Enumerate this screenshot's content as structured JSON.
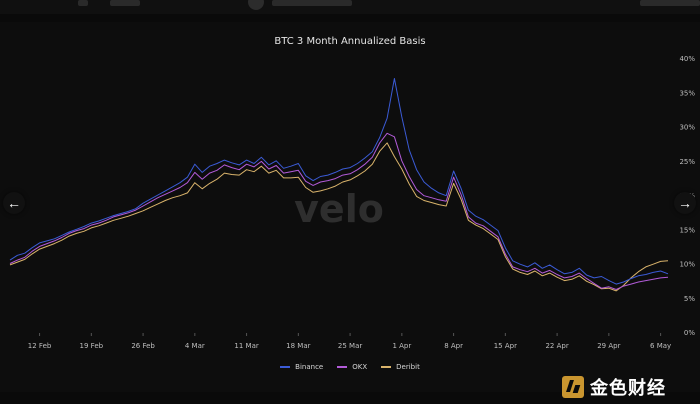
{
  "chart_data": {
    "type": "line",
    "title": "BTC 3 Month Annualized Basis",
    "xlabel": "",
    "ylabel": "",
    "x": [
      "2024-02-08",
      "2024-02-09",
      "2024-02-10",
      "2024-02-11",
      "2024-02-12",
      "2024-02-13",
      "2024-02-14",
      "2024-02-15",
      "2024-02-16",
      "2024-02-17",
      "2024-02-18",
      "2024-02-19",
      "2024-02-20",
      "2024-02-21",
      "2024-02-22",
      "2024-02-23",
      "2024-02-24",
      "2024-02-25",
      "2024-02-26",
      "2024-02-27",
      "2024-02-28",
      "2024-02-29",
      "2024-03-01",
      "2024-03-02",
      "2024-03-03",
      "2024-03-04",
      "2024-03-05",
      "2024-03-06",
      "2024-03-07",
      "2024-03-08",
      "2024-03-09",
      "2024-03-10",
      "2024-03-11",
      "2024-03-12",
      "2024-03-13",
      "2024-03-14",
      "2024-03-15",
      "2024-03-16",
      "2024-03-17",
      "2024-03-18",
      "2024-03-19",
      "2024-03-20",
      "2024-03-21",
      "2024-03-22",
      "2024-03-23",
      "2024-03-24",
      "2024-03-25",
      "2024-03-26",
      "2024-03-27",
      "2024-03-28",
      "2024-03-29",
      "2024-03-30",
      "2024-03-31",
      "2024-04-01",
      "2024-04-02",
      "2024-04-03",
      "2024-04-04",
      "2024-04-05",
      "2024-04-06",
      "2024-04-07",
      "2024-04-08",
      "2024-04-09",
      "2024-04-10",
      "2024-04-11",
      "2024-04-12",
      "2024-04-13",
      "2024-04-14",
      "2024-04-15",
      "2024-04-16",
      "2024-04-17",
      "2024-04-18",
      "2024-04-19",
      "2024-04-20",
      "2024-04-21",
      "2024-04-22",
      "2024-04-23",
      "2024-04-24",
      "2024-04-25",
      "2024-04-26",
      "2024-04-27",
      "2024-04-28",
      "2024-04-29",
      "2024-04-30",
      "2024-05-01",
      "2024-05-02",
      "2024-05-03",
      "2024-05-04",
      "2024-05-05",
      "2024-05-06",
      "2024-05-07"
    ],
    "series": [
      {
        "name": "Binance",
        "color": "#3b5bd6",
        "values": [
          10.5,
          11.2,
          11.5,
          12.3,
          13.0,
          13.3,
          13.6,
          14.1,
          14.6,
          15.0,
          15.4,
          15.9,
          16.2,
          16.6,
          17.0,
          17.3,
          17.6,
          18.0,
          18.8,
          19.4,
          20.0,
          20.6,
          21.2,
          21.8,
          22.6,
          24.5,
          23.3,
          24.2,
          24.6,
          25.1,
          24.7,
          24.4,
          25.1,
          24.6,
          25.5,
          24.4,
          25.0,
          23.9,
          24.2,
          24.6,
          22.8,
          22.1,
          22.7,
          22.9,
          23.3,
          23.8,
          24.0,
          24.6,
          25.4,
          26.3,
          28.4,
          31.2,
          37.0,
          31.4,
          26.6,
          23.7,
          21.9,
          21.0,
          20.3,
          19.9,
          23.5,
          21.0,
          17.8,
          16.9,
          16.4,
          15.6,
          14.8,
          12.3,
          10.4,
          9.9,
          9.5,
          10.1,
          9.3,
          9.8,
          9.1,
          8.5,
          8.7,
          9.3,
          8.3,
          7.9,
          8.1,
          7.5,
          7.0,
          7.3,
          7.8,
          8.2,
          8.4,
          8.7,
          8.9,
          8.5
        ]
      },
      {
        "name": "OKX",
        "color": "#b25bd8",
        "values": [
          10.0,
          10.5,
          10.9,
          11.8,
          12.5,
          12.9,
          13.3,
          13.8,
          14.4,
          14.8,
          15.1,
          15.6,
          15.9,
          16.3,
          16.8,
          17.1,
          17.4,
          17.8,
          18.4,
          19.0,
          19.6,
          20.1,
          20.6,
          21.1,
          21.8,
          23.3,
          22.3,
          23.2,
          23.6,
          24.4,
          24.0,
          23.7,
          24.5,
          24.1,
          24.9,
          23.8,
          24.3,
          23.2,
          23.4,
          23.6,
          22.0,
          21.4,
          21.9,
          22.1,
          22.4,
          22.9,
          23.1,
          23.7,
          24.5,
          25.5,
          27.6,
          29.0,
          28.5,
          25.0,
          22.7,
          20.8,
          19.9,
          19.6,
          19.3,
          19.1,
          22.6,
          20.1,
          16.8,
          15.9,
          15.5,
          14.7,
          13.9,
          11.4,
          9.5,
          9.1,
          8.8,
          9.3,
          8.6,
          9.0,
          8.4,
          7.9,
          8.1,
          8.6,
          7.8,
          7.1,
          6.4,
          6.6,
          6.2,
          6.7,
          7.0,
          7.3,
          7.5,
          7.7,
          7.9,
          8.0
        ]
      },
      {
        "name": "Deribit",
        "color": "#d9b36b",
        "values": [
          9.8,
          10.2,
          10.6,
          11.4,
          12.1,
          12.5,
          12.9,
          13.4,
          14.0,
          14.4,
          14.7,
          15.2,
          15.5,
          15.9,
          16.3,
          16.6,
          16.9,
          17.3,
          17.7,
          18.2,
          18.7,
          19.2,
          19.6,
          19.9,
          20.3,
          21.8,
          20.9,
          21.7,
          22.3,
          23.2,
          23.0,
          22.9,
          23.7,
          23.4,
          24.2,
          23.2,
          23.6,
          22.5,
          22.5,
          22.6,
          21.1,
          20.4,
          20.6,
          20.9,
          21.3,
          21.9,
          22.2,
          22.8,
          23.5,
          24.5,
          26.4,
          27.6,
          25.6,
          23.8,
          21.6,
          19.8,
          19.2,
          18.9,
          18.6,
          18.4,
          21.7,
          19.4,
          16.3,
          15.6,
          15.1,
          14.3,
          13.5,
          11.0,
          9.2,
          8.7,
          8.4,
          8.9,
          8.2,
          8.6,
          8.0,
          7.5,
          7.7,
          8.2,
          7.4,
          6.9,
          6.3,
          6.4,
          6.0,
          6.8,
          7.9,
          8.8,
          9.5,
          9.9,
          10.3,
          10.4
        ]
      }
    ],
    "ylim": [
      0,
      40
    ],
    "yticks": [
      {
        "value": 0,
        "label": "0%"
      },
      {
        "value": 5,
        "label": "5%"
      },
      {
        "value": 10,
        "label": "10%"
      },
      {
        "value": 15,
        "label": "15%"
      },
      {
        "value": 20,
        "label": "20%"
      },
      {
        "value": 25,
        "label": "25%"
      },
      {
        "value": 30,
        "label": "30%"
      },
      {
        "value": 35,
        "label": "35%"
      },
      {
        "value": 40,
        "label": "40%"
      }
    ],
    "xticks": [
      {
        "x": "2024-02-12",
        "label": "12 Feb"
      },
      {
        "x": "2024-02-19",
        "label": "19 Feb"
      },
      {
        "x": "2024-02-26",
        "label": "26 Feb"
      },
      {
        "x": "2024-03-04",
        "label": "4 Mar"
      },
      {
        "x": "2024-03-11",
        "label": "11 Mar"
      },
      {
        "x": "2024-03-18",
        "label": "18 Mar"
      },
      {
        "x": "2024-03-25",
        "label": "25 Mar"
      },
      {
        "x": "2024-04-01",
        "label": "1 Apr"
      },
      {
        "x": "2024-04-08",
        "label": "8 Apr"
      },
      {
        "x": "2024-04-15",
        "label": "15 Apr"
      },
      {
        "x": "2024-04-22",
        "label": "22 Apr"
      },
      {
        "x": "2024-04-29",
        "label": "29 Apr"
      },
      {
        "x": "2024-05-06",
        "label": "6 May"
      }
    ],
    "grid": false,
    "legend": "bottom-center",
    "watermark": "velo"
  },
  "navigation": {
    "prev_icon": "arrow-left-icon",
    "next_icon": "arrow-right-icon"
  },
  "footer": {
    "logo_text": "金色财经"
  },
  "colors": {
    "background": "#0a0a0a",
    "title": "#e6e6e6",
    "axis_text": "#bfbfbf"
  }
}
